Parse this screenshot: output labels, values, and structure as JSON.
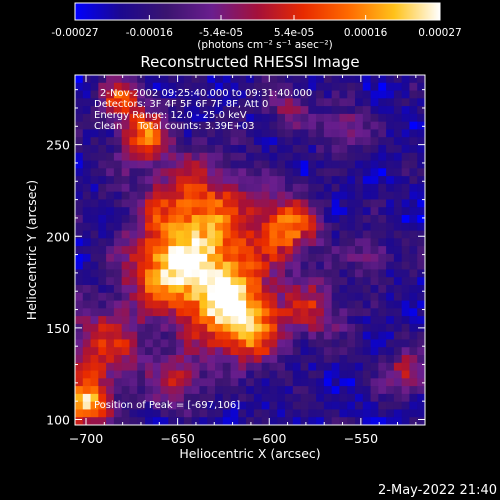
{
  "chart_data": {
    "type": "heatmap",
    "title": "Reconstructed RHESSI Image",
    "xlabel": "Heliocentric X (arcsec)",
    "ylabel": "Heliocentric Y (arcsec)",
    "xlim": [
      -706,
      -515
    ],
    "ylim": [
      97,
      288
    ],
    "x_ticks": [
      -700,
      -650,
      -600,
      -550
    ],
    "y_ticks": [
      100,
      150,
      200,
      250
    ],
    "colorbar": {
      "range": [
        -0.00027,
        0.00027
      ],
      "tick_values": [
        -0.00027,
        -0.00016,
        -5.4e-05,
        5.4e-05,
        0.00016,
        0.00027
      ],
      "tick_labels": [
        "-0.00027",
        "-0.00016",
        "-5.4e-05",
        "5.4e-05",
        "0.00016",
        "0.00027"
      ],
      "units_label": "(photons cm⁻² s⁻¹ asec⁻²)",
      "colormap_stops": [
        "#0000ff",
        "#1c0890",
        "#3a1470",
        "#6a1e8e",
        "#a4103a",
        "#e82a00",
        "#ff6a00",
        "#ffc21a",
        "#ffffff"
      ]
    },
    "annotations": [
      "2-Nov-2002 09:25:40.000 to 09:31:40.000",
      "Detectors: 3F 4F 5F 6F 7F 8F, Att 0",
      "Energy Range: 12.0 - 25.0 keV",
      "Clean     Total counts: 3.39E+03"
    ],
    "peak_label": "Position of Peak = [-697,106]",
    "peak": [
      -697,
      106
    ],
    "footer_timestamp": "2-May-2022 21:40",
    "grid": false
  }
}
